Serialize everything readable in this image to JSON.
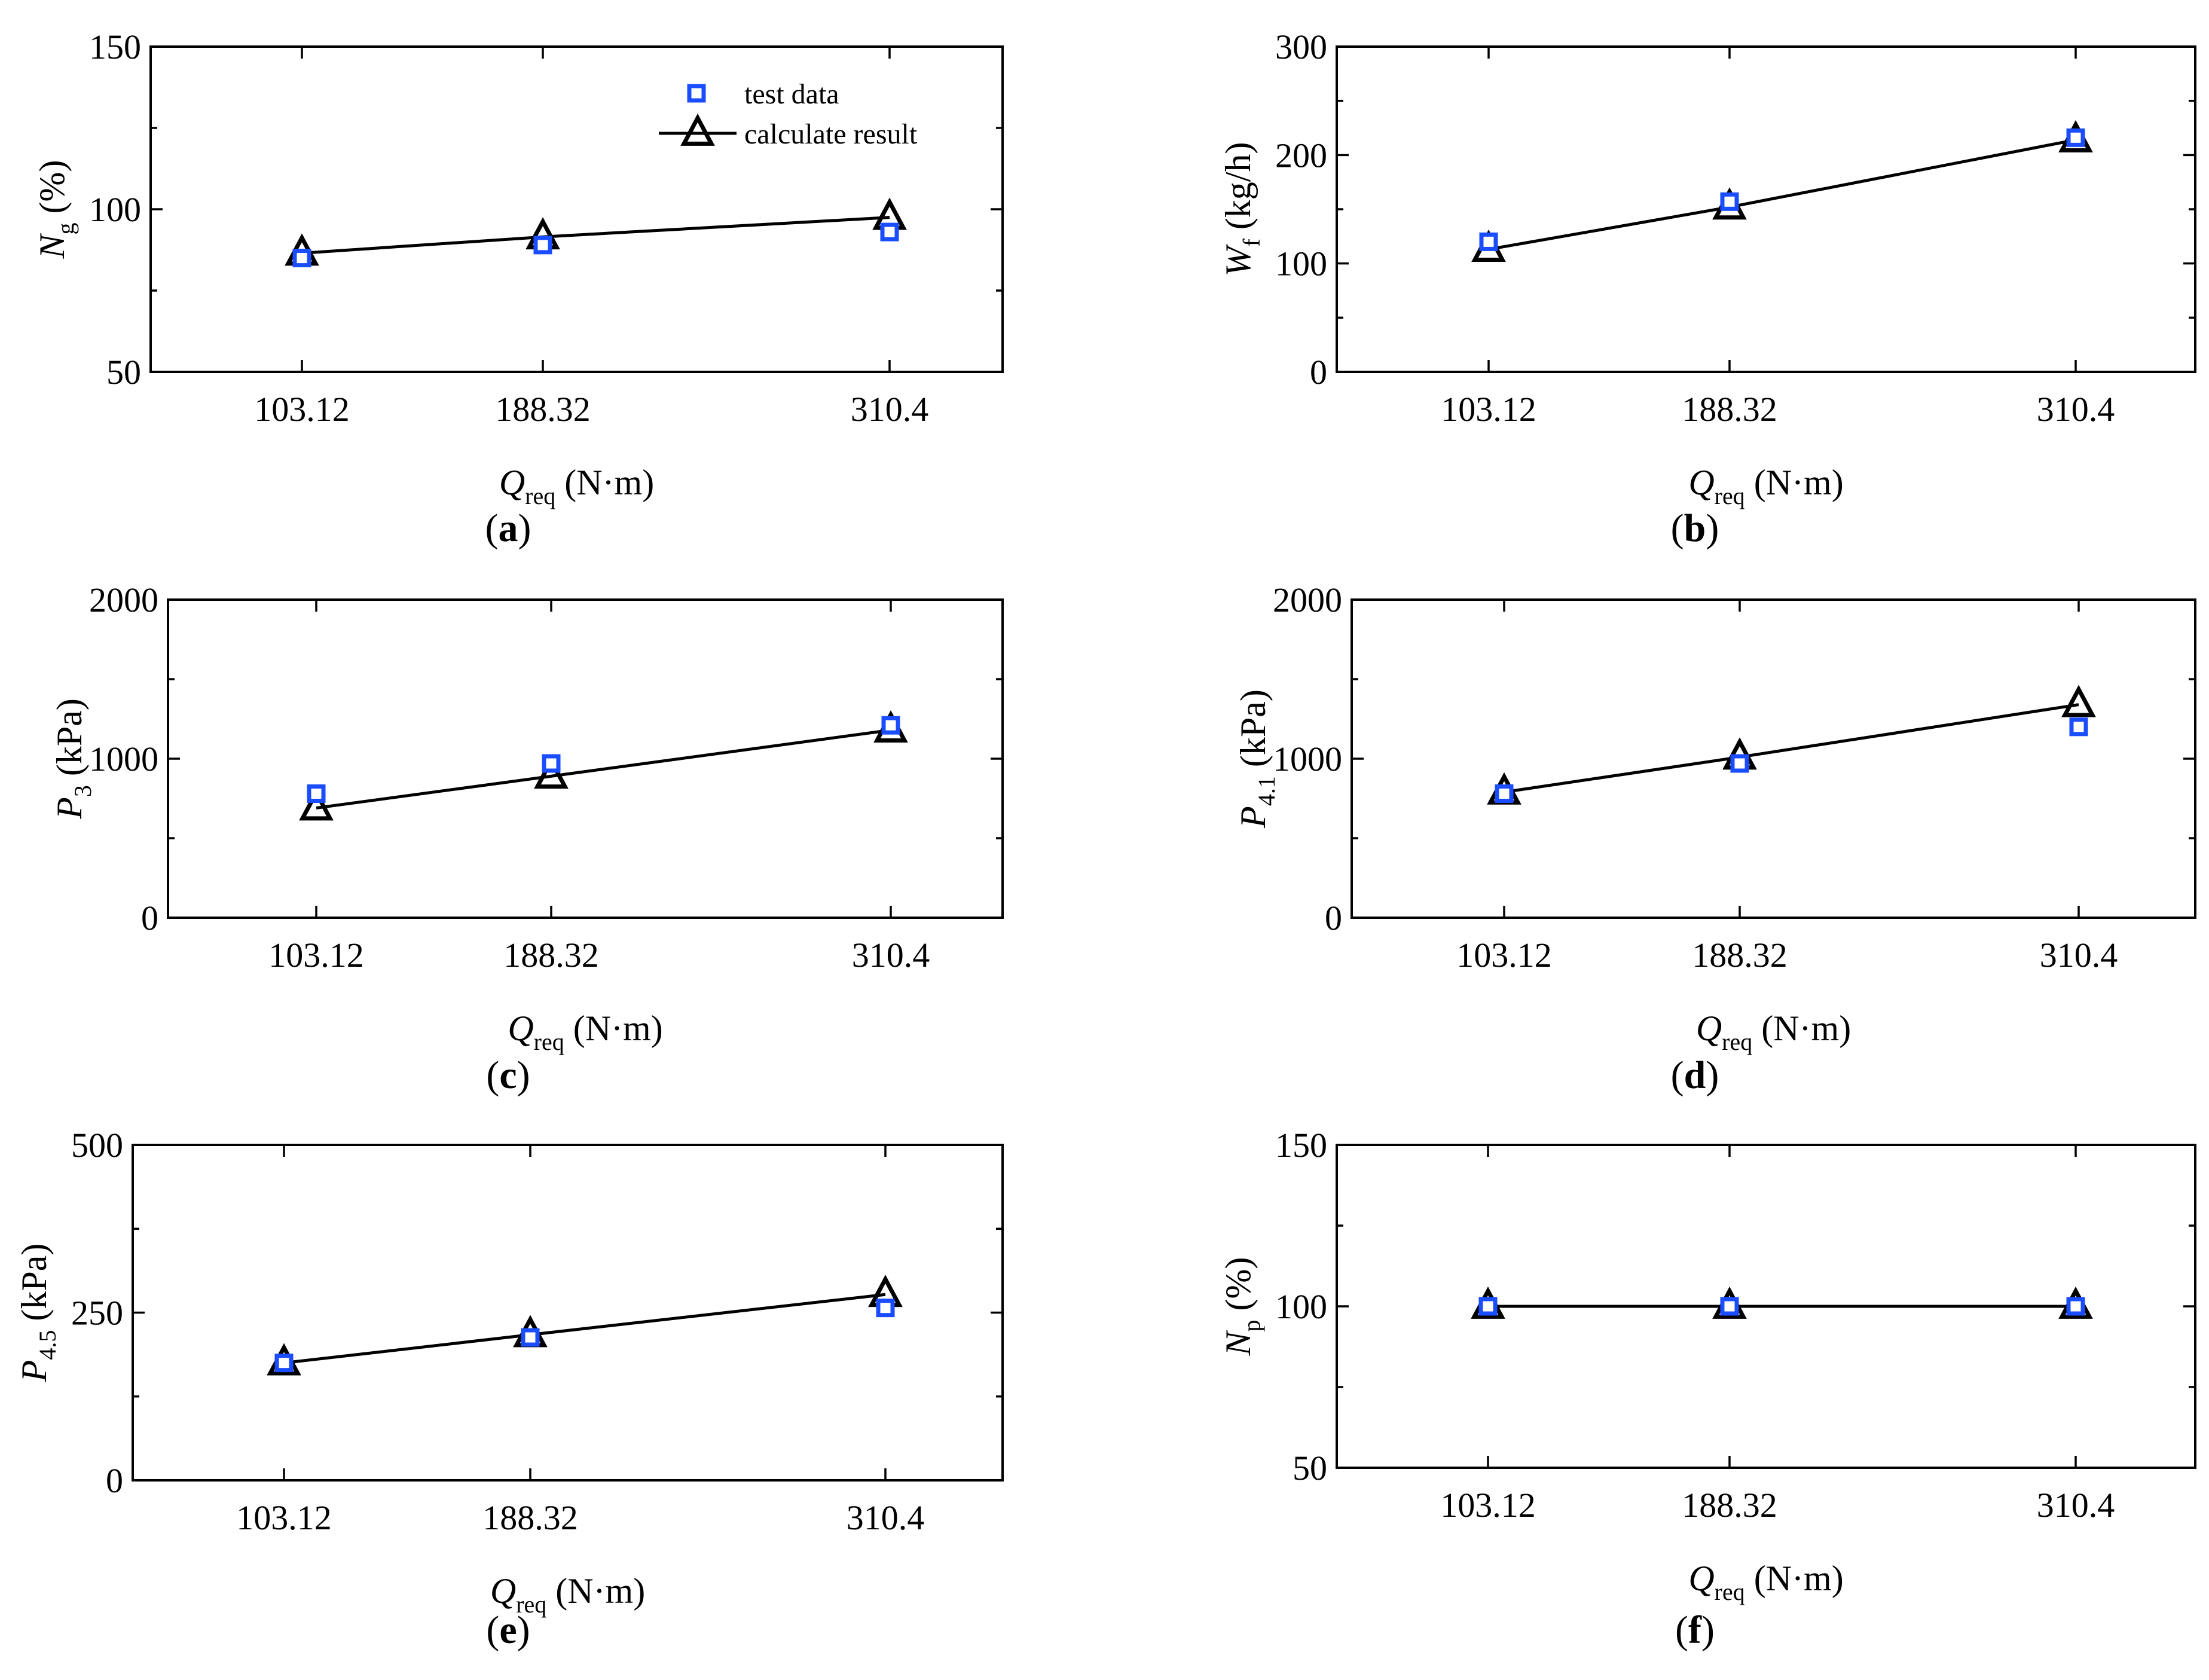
{
  "chart_data": [
    {
      "id": "a",
      "type": "line",
      "panel_label": "a",
      "categories": [
        "103.12",
        "188.32",
        "310.4"
      ],
      "x": [
        103.12,
        188.32,
        310.4
      ],
      "ylim": [
        50,
        150
      ],
      "yticks": [
        "50",
        "100",
        "150"
      ],
      "ytick_values": [
        50,
        100,
        150
      ],
      "ylabel": {
        "sym": "N",
        "sub": "g",
        "unit": " (%)"
      },
      "xlabel": {
        "sym": "Q",
        "sub": "req",
        "unit": " (N·m)"
      },
      "series": [
        {
          "name": "test data",
          "marker": "square",
          "values": [
            85,
            89,
            93
          ]
        },
        {
          "name": "calculate result",
          "marker": "triangle",
          "values": [
            86.5,
            91.5,
            97.5
          ]
        }
      ],
      "legend": {
        "position": "top-right",
        "items": [
          "test data",
          "calculate result"
        ]
      }
    },
    {
      "id": "b",
      "type": "line",
      "panel_label": "b",
      "categories": [
        "103.12",
        "188.32",
        "310.4"
      ],
      "x": [
        103.12,
        188.32,
        310.4
      ],
      "ylim": [
        0,
        300
      ],
      "yticks": [
        "0",
        "100",
        "200",
        "300"
      ],
      "ytick_values": [
        0,
        100,
        200,
        300
      ],
      "ylabel": {
        "sym": "W",
        "sub": "f",
        "unit": " (kg/h)"
      },
      "xlabel": {
        "sym": "Q",
        "sub": "req",
        "unit": " (N·m)"
      },
      "series": [
        {
          "name": "test data",
          "marker": "square",
          "values": [
            120,
            157,
            216
          ]
        },
        {
          "name": "calculate result",
          "marker": "triangle",
          "values": [
            113,
            152,
            214
          ]
        }
      ]
    },
    {
      "id": "c",
      "type": "line",
      "panel_label": "c",
      "categories": [
        "103.12",
        "188.32",
        "310.4"
      ],
      "x": [
        103.12,
        188.32,
        310.4
      ],
      "ylim": [
        0,
        2000
      ],
      "yticks": [
        "0",
        "1000",
        "2000"
      ],
      "ytick_values": [
        0,
        1000,
        2000
      ],
      "ylabel": {
        "sym": "P",
        "sub": "3",
        "unit": " (kPa)"
      },
      "xlabel": {
        "sym": "Q",
        "sub": "req",
        "unit": " (N·m)"
      },
      "series": [
        {
          "name": "test data",
          "marker": "square",
          "values": [
            780,
            970,
            1210
          ]
        },
        {
          "name": "calculate result",
          "marker": "triangle",
          "values": [
            690,
            890,
            1180
          ]
        }
      ]
    },
    {
      "id": "d",
      "type": "line",
      "panel_label": "d",
      "categories": [
        "103.12",
        "188.32",
        "310.4"
      ],
      "x": [
        103.12,
        188.32,
        310.4
      ],
      "ylim": [
        0,
        2000
      ],
      "yticks": [
        "0",
        "1000",
        "2000"
      ],
      "ytick_values": [
        0,
        1000,
        2000
      ],
      "ylabel": {
        "sym": "P",
        "sub": "4.1",
        "unit": " (kPa)"
      },
      "xlabel": {
        "sym": "Q",
        "sub": "req",
        "unit": " (N·m)"
      },
      "series": [
        {
          "name": "test data",
          "marker": "square",
          "values": [
            780,
            970,
            1200
          ]
        },
        {
          "name": "calculate result",
          "marker": "triangle",
          "values": [
            790,
            1010,
            1340
          ]
        }
      ]
    },
    {
      "id": "e",
      "type": "line",
      "panel_label": "e",
      "categories": [
        "103.12",
        "188.32",
        "310.4"
      ],
      "x": [
        103.12,
        188.32,
        310.4
      ],
      "ylim": [
        0,
        500
      ],
      "yticks": [
        "0",
        "250",
        "500"
      ],
      "ytick_values": [
        0,
        250,
        500
      ],
      "ylabel": {
        "sym": "P",
        "sub": "4.5",
        "unit": " (kPa)"
      },
      "xlabel": {
        "sym": "Q",
        "sub": "req",
        "unit": " (N·m)"
      },
      "series": [
        {
          "name": "test data",
          "marker": "square",
          "values": [
            175,
            213,
            257
          ]
        },
        {
          "name": "calculate result",
          "marker": "triangle",
          "values": [
            175,
            217,
            277
          ]
        }
      ]
    },
    {
      "id": "f",
      "type": "line",
      "panel_label": "f",
      "categories": [
        "103.12",
        "188.32",
        "310.4"
      ],
      "x": [
        103.12,
        188.32,
        310.4
      ],
      "ylim": [
        50,
        150
      ],
      "yticks": [
        "50",
        "100",
        "150"
      ],
      "ytick_values": [
        50,
        100,
        150
      ],
      "ylabel": {
        "sym": "N",
        "sub": "p",
        "unit": " (%)"
      },
      "xlabel": {
        "sym": "Q",
        "sub": "req",
        "unit": " (N·m)"
      },
      "series": [
        {
          "name": "test data",
          "marker": "square",
          "values": [
            100,
            100,
            100
          ]
        },
        {
          "name": "calculate result",
          "marker": "triangle",
          "values": [
            100,
            100,
            100
          ]
        }
      ]
    }
  ]
}
